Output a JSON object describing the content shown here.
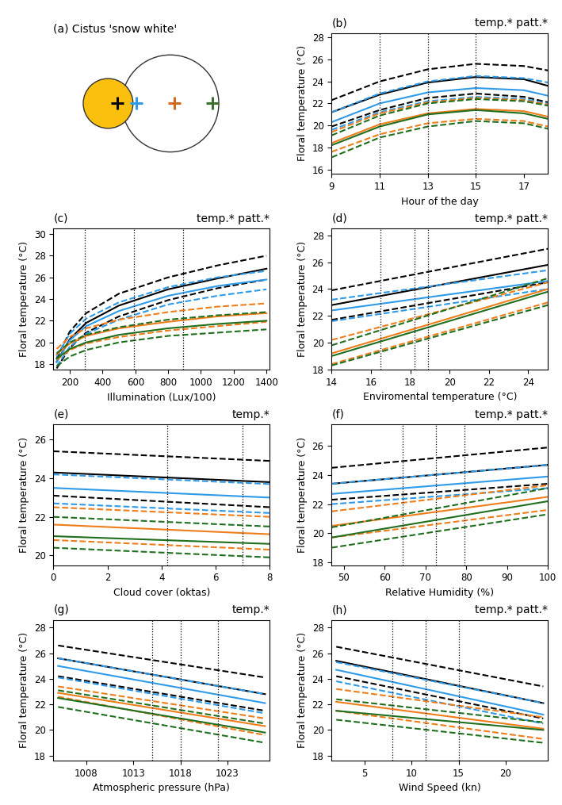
{
  "diagram": {
    "title": "(a) Cistus 'snow white'",
    "marker_colors": [
      "#000000",
      "#2f9be8",
      "#d2691e",
      "#3d6e2e"
    ]
  },
  "chart_data": [
    {
      "type": "line",
      "title": "(b)",
      "annotation": "temp.* patt.*",
      "x_label": "Hour of the day",
      "y_label": "Floral temperature (°C)",
      "x": [
        9,
        11,
        13,
        15,
        17,
        18
      ],
      "xlim": [
        9,
        18
      ],
      "ylim": [
        15.6,
        28.4
      ],
      "xticks": [
        9,
        11,
        13,
        15,
        17
      ],
      "yticks": [
        16,
        18,
        20,
        22,
        24,
        26,
        28
      ],
      "vlines": [
        11,
        13,
        15
      ],
      "series": [
        {
          "color": "#000000",
          "line_style": "dashed",
          "values": [
            22.3,
            24.0,
            25.1,
            25.6,
            25.4,
            25.0
          ]
        },
        {
          "color": "#000000",
          "line_style": "solid",
          "values": [
            21.2,
            22.8,
            23.9,
            24.4,
            24.2,
            23.6
          ]
        },
        {
          "color": "#000000",
          "line_style": "dashed",
          "values": [
            19.9,
            21.4,
            22.5,
            22.9,
            22.6,
            22.1
          ]
        },
        {
          "color": "#2f9be8",
          "line_style": "dashed",
          "values": [
            21.2,
            22.9,
            24.0,
            24.5,
            24.3,
            23.9
          ]
        },
        {
          "color": "#2f9be8",
          "line_style": "solid",
          "values": [
            20.3,
            22.0,
            23.0,
            23.4,
            23.2,
            22.7
          ]
        },
        {
          "color": "#2f9be8",
          "line_style": "dashed",
          "values": [
            19.6,
            21.2,
            22.2,
            22.6,
            22.4,
            22.0
          ]
        },
        {
          "color": "#ef7d1a",
          "line_style": "dashed",
          "values": [
            19.4,
            21.1,
            22.1,
            22.5,
            22.3,
            21.9
          ]
        },
        {
          "color": "#ef7d1a",
          "line_style": "solid",
          "values": [
            18.4,
            20.1,
            21.1,
            21.5,
            21.3,
            20.8
          ]
        },
        {
          "color": "#ef7d1a",
          "line_style": "dashed",
          "values": [
            17.6,
            19.2,
            20.2,
            20.6,
            20.4,
            19.9
          ]
        },
        {
          "color": "#1f6f1f",
          "line_style": "dashed",
          "values": [
            19.1,
            20.9,
            22.0,
            22.4,
            22.2,
            21.8
          ]
        },
        {
          "color": "#1f6f1f",
          "line_style": "solid",
          "values": [
            18.2,
            19.9,
            21.0,
            21.4,
            21.1,
            20.6
          ]
        },
        {
          "color": "#1f6f1f",
          "line_style": "dashed",
          "values": [
            17.1,
            18.9,
            19.9,
            20.4,
            20.2,
            19.7
          ]
        }
      ]
    },
    {
      "type": "line",
      "title": "(c)",
      "annotation": "temp.* patt.*",
      "x_label": "Illumination (Lux/100)",
      "y_label": "Floral temperature (°C)",
      "x": [
        120,
        200,
        300,
        500,
        800,
        1100,
        1400
      ],
      "xlim": [
        100,
        1420
      ],
      "ylim": [
        17.5,
        30.5
      ],
      "xticks": [
        200,
        400,
        600,
        800,
        1000,
        1200,
        1400
      ],
      "yticks": [
        18,
        20,
        22,
        24,
        26,
        28,
        30
      ],
      "vlines": [
        290,
        590,
        890
      ],
      "series": [
        {
          "color": "#000000",
          "line_style": "dashed",
          "values": [
            18.5,
            21.0,
            22.7,
            24.5,
            26.0,
            27.1,
            28.0
          ]
        },
        {
          "color": "#000000",
          "line_style": "solid",
          "values": [
            18.2,
            20.3,
            21.8,
            23.4,
            24.9,
            25.9,
            26.8
          ]
        },
        {
          "color": "#000000",
          "line_style": "dashed",
          "values": [
            17.6,
            19.5,
            20.9,
            22.4,
            23.9,
            25.0,
            25.8
          ]
        },
        {
          "color": "#2f9be8",
          "line_style": "dashed",
          "values": [
            18.7,
            20.8,
            22.2,
            23.7,
            25.1,
            26.0,
            26.6
          ]
        },
        {
          "color": "#2f9be8",
          "line_style": "solid",
          "values": [
            18.2,
            20.2,
            21.5,
            22.9,
            24.3,
            25.2,
            25.8
          ]
        },
        {
          "color": "#2f9be8",
          "line_style": "dashed",
          "values": [
            17.8,
            19.6,
            20.8,
            22.1,
            23.5,
            24.3,
            24.9
          ]
        },
        {
          "color": "#ef7d1a",
          "line_style": "dashed",
          "values": [
            19.4,
            20.5,
            21.3,
            22.1,
            22.8,
            23.3,
            23.6
          ]
        },
        {
          "color": "#ef7d1a",
          "line_style": "solid",
          "values": [
            18.9,
            19.9,
            20.6,
            21.3,
            21.9,
            22.4,
            22.7
          ]
        },
        {
          "color": "#ef7d1a",
          "line_style": "dashed",
          "values": [
            18.4,
            19.3,
            19.9,
            20.5,
            21.1,
            21.5,
            21.9
          ]
        },
        {
          "color": "#1f6f1f",
          "line_style": "dashed",
          "values": [
            19.0,
            20.0,
            20.7,
            21.4,
            22.1,
            22.5,
            22.8
          ]
        },
        {
          "color": "#1f6f1f",
          "line_style": "solid",
          "values": [
            18.5,
            19.4,
            20.0,
            20.7,
            21.3,
            21.7,
            22.0
          ]
        },
        {
          "color": "#1f6f1f",
          "line_style": "dashed",
          "values": [
            17.8,
            18.7,
            19.3,
            20.0,
            20.6,
            20.9,
            21.2
          ]
        }
      ]
    },
    {
      "type": "line",
      "title": "(d)",
      "annotation": "temp.* patt.*",
      "x_label": "Enviromental temperature (°C)",
      "y_label": "Floral temperature (°C)",
      "x": [
        14,
        25
      ],
      "xlim": [
        14,
        25
      ],
      "ylim": [
        18,
        28.5
      ],
      "xticks": [
        14,
        16,
        18,
        20,
        22,
        24
      ],
      "yticks": [
        18,
        20,
        22,
        24,
        26,
        28
      ],
      "vlines": [
        16.5,
        18.2,
        18.9
      ],
      "series": [
        {
          "color": "#000000",
          "line_style": "dashed",
          "values": [
            23.9,
            27.0
          ]
        },
        {
          "color": "#000000",
          "line_style": "solid",
          "values": [
            22.8,
            25.8
          ]
        },
        {
          "color": "#000000",
          "line_style": "dashed",
          "values": [
            21.7,
            24.5
          ]
        },
        {
          "color": "#2f9be8",
          "line_style": "dashed",
          "values": [
            23.2,
            25.4
          ]
        },
        {
          "color": "#2f9be8",
          "line_style": "solid",
          "values": [
            22.4,
            24.6
          ]
        },
        {
          "color": "#2f9be8",
          "line_style": "dashed",
          "values": [
            21.6,
            24.0
          ]
        },
        {
          "color": "#ef7d1a",
          "line_style": "dashed",
          "values": [
            20.2,
            24.5
          ]
        },
        {
          "color": "#ef7d1a",
          "line_style": "solid",
          "values": [
            19.2,
            24.0
          ]
        },
        {
          "color": "#ef7d1a",
          "line_style": "dashed",
          "values": [
            18.4,
            23.0
          ]
        },
        {
          "color": "#1f6f1f",
          "line_style": "dashed",
          "values": [
            19.8,
            24.8
          ]
        },
        {
          "color": "#1f6f1f",
          "line_style": "solid",
          "values": [
            19.0,
            23.8
          ]
        },
        {
          "color": "#1f6f1f",
          "line_style": "dashed",
          "values": [
            18.3,
            22.8
          ]
        }
      ]
    },
    {
      "type": "line",
      "title": "(e)",
      "annotation": "temp.*",
      "x_label": "Cloud cover (oktas)",
      "y_label": "Floral temperature (°C)",
      "x": [
        0,
        8
      ],
      "xlim": [
        0,
        8
      ],
      "ylim": [
        19.5,
        26.8
      ],
      "xticks": [
        0,
        2,
        4,
        6,
        8
      ],
      "yticks": [
        20,
        22,
        24,
        26
      ],
      "vlines": [
        4.2,
        7.0
      ],
      "series": [
        {
          "color": "#000000",
          "line_style": "dashed",
          "values": [
            25.4,
            24.9
          ]
        },
        {
          "color": "#000000",
          "line_style": "solid",
          "values": [
            24.3,
            23.8
          ]
        },
        {
          "color": "#000000",
          "line_style": "dashed",
          "values": [
            23.1,
            22.5
          ]
        },
        {
          "color": "#2f9be8",
          "line_style": "dashed",
          "values": [
            24.2,
            23.7
          ]
        },
        {
          "color": "#2f9be8",
          "line_style": "solid",
          "values": [
            23.5,
            23.0
          ]
        },
        {
          "color": "#2f9be8",
          "line_style": "dashed",
          "values": [
            22.7,
            22.2
          ]
        },
        {
          "color": "#ef7d1a",
          "line_style": "dashed",
          "values": [
            22.5,
            22.0
          ]
        },
        {
          "color": "#ef7d1a",
          "line_style": "solid",
          "values": [
            21.6,
            21.1
          ]
        },
        {
          "color": "#ef7d1a",
          "line_style": "dashed",
          "values": [
            20.8,
            20.3
          ]
        },
        {
          "color": "#1f6f1f",
          "line_style": "dashed",
          "values": [
            22.0,
            21.5
          ]
        },
        {
          "color": "#1f6f1f",
          "line_style": "solid",
          "values": [
            21.0,
            20.6
          ]
        },
        {
          "color": "#1f6f1f",
          "line_style": "dashed",
          "values": [
            20.4,
            19.9
          ]
        }
      ]
    },
    {
      "type": "line",
      "title": "(f)",
      "annotation": "temp.* patt.*",
      "x_label": "Relative Humidity (%)",
      "y_label": "Floral temperature (°C)",
      "x": [
        47,
        100
      ],
      "xlim": [
        47,
        100
      ],
      "ylim": [
        17.8,
        27.5
      ],
      "xticks": [
        50,
        60,
        70,
        80,
        90,
        100
      ],
      "yticks": [
        18,
        20,
        22,
        24,
        26
      ],
      "vlines": [
        64.5,
        72.5,
        79.5
      ],
      "series": [
        {
          "color": "#000000",
          "line_style": "dashed",
          "values": [
            24.5,
            25.9
          ]
        },
        {
          "color": "#000000",
          "line_style": "solid",
          "values": [
            23.4,
            24.7
          ]
        },
        {
          "color": "#000000",
          "line_style": "dashed",
          "values": [
            22.3,
            23.4
          ]
        },
        {
          "color": "#2f9be8",
          "line_style": "dashed",
          "values": [
            23.4,
            24.7
          ]
        },
        {
          "color": "#2f9be8",
          "line_style": "solid",
          "values": [
            22.7,
            23.9
          ]
        },
        {
          "color": "#2f9be8",
          "line_style": "dashed",
          "values": [
            22.0,
            23.1
          ]
        },
        {
          "color": "#ef7d1a",
          "line_style": "dashed",
          "values": [
            21.5,
            23.3
          ]
        },
        {
          "color": "#ef7d1a",
          "line_style": "solid",
          "values": [
            20.5,
            22.5
          ]
        },
        {
          "color": "#ef7d1a",
          "line_style": "dashed",
          "values": [
            19.7,
            21.6
          ]
        },
        {
          "color": "#1f6f1f",
          "line_style": "dashed",
          "values": [
            20.4,
            23.1
          ]
        },
        {
          "color": "#1f6f1f",
          "line_style": "solid",
          "values": [
            19.7,
            22.2
          ]
        },
        {
          "color": "#1f6f1f",
          "line_style": "dashed",
          "values": [
            19.0,
            21.3
          ]
        }
      ]
    },
    {
      "type": "line",
      "title": "(g)",
      "annotation": "temp.*",
      "x_label": "Atmospheric pressure (hPa)",
      "y_label": "Floral temperature (°C)",
      "x": [
        1005,
        1027
      ],
      "xlim": [
        1004.5,
        1027.5
      ],
      "ylim": [
        17.6,
        28.6
      ],
      "xticks": [
        1008,
        1013,
        1018,
        1023
      ],
      "yticks": [
        18,
        20,
        22,
        24,
        26,
        28
      ],
      "vlines": [
        1015,
        1018,
        1022
      ],
      "series": [
        {
          "color": "#000000",
          "line_style": "dashed",
          "values": [
            26.6,
            24.1
          ]
        },
        {
          "color": "#000000",
          "line_style": "solid",
          "values": [
            25.6,
            22.8
          ]
        },
        {
          "color": "#000000",
          "line_style": "dashed",
          "values": [
            24.2,
            21.5
          ]
        },
        {
          "color": "#2f9be8",
          "line_style": "dashed",
          "values": [
            25.6,
            22.8
          ]
        },
        {
          "color": "#2f9be8",
          "line_style": "solid",
          "values": [
            25.0,
            22.1
          ]
        },
        {
          "color": "#2f9be8",
          "line_style": "dashed",
          "values": [
            24.1,
            21.3
          ]
        },
        {
          "color": "#ef7d1a",
          "line_style": "dashed",
          "values": [
            23.4,
            20.9
          ]
        },
        {
          "color": "#ef7d1a",
          "line_style": "solid",
          "values": [
            22.9,
            20.3
          ]
        },
        {
          "color": "#ef7d1a",
          "line_style": "dashed",
          "values": [
            22.6,
            19.6
          ]
        },
        {
          "color": "#1f6f1f",
          "line_style": "dashed",
          "values": [
            23.1,
            20.5
          ]
        },
        {
          "color": "#1f6f1f",
          "line_style": "solid",
          "values": [
            22.5,
            19.8
          ]
        },
        {
          "color": "#1f6f1f",
          "line_style": "dashed",
          "values": [
            21.8,
            19.0
          ]
        }
      ]
    },
    {
      "type": "line",
      "title": "(h)",
      "annotation": "temp.* patt.*",
      "x_label": "Wind Speed (kn)",
      "y_label": "Floral temperature (°C)",
      "x": [
        2,
        24
      ],
      "xlim": [
        1.5,
        24.5
      ],
      "ylim": [
        17.6,
        28.6
      ],
      "xticks": [
        5,
        10,
        15,
        20
      ],
      "yticks": [
        18,
        20,
        22,
        24,
        26,
        28
      ],
      "vlines": [
        8,
        11.5,
        15
      ],
      "series": [
        {
          "color": "#000000",
          "line_style": "dashed",
          "values": [
            26.5,
            23.4
          ]
        },
        {
          "color": "#000000",
          "line_style": "solid",
          "values": [
            25.4,
            22.1
          ]
        },
        {
          "color": "#000000",
          "line_style": "dashed",
          "values": [
            24.2,
            20.9
          ]
        },
        {
          "color": "#2f9be8",
          "line_style": "dashed",
          "values": [
            25.3,
            22.1
          ]
        },
        {
          "color": "#2f9be8",
          "line_style": "solid",
          "values": [
            24.7,
            21.2
          ]
        },
        {
          "color": "#2f9be8",
          "line_style": "dashed",
          "values": [
            23.8,
            20.5
          ]
        },
        {
          "color": "#ef7d1a",
          "line_style": "dashed",
          "values": [
            23.2,
            21.0
          ]
        },
        {
          "color": "#ef7d1a",
          "line_style": "solid",
          "values": [
            22.2,
            20.1
          ]
        },
        {
          "color": "#ef7d1a",
          "line_style": "dashed",
          "values": [
            21.5,
            19.3
          ]
        },
        {
          "color": "#1f6f1f",
          "line_style": "dashed",
          "values": [
            22.4,
            20.6
          ]
        },
        {
          "color": "#1f6f1f",
          "line_style": "solid",
          "values": [
            21.5,
            20.0
          ]
        },
        {
          "color": "#1f6f1f",
          "line_style": "dashed",
          "values": [
            20.8,
            19.0
          ]
        }
      ]
    }
  ]
}
